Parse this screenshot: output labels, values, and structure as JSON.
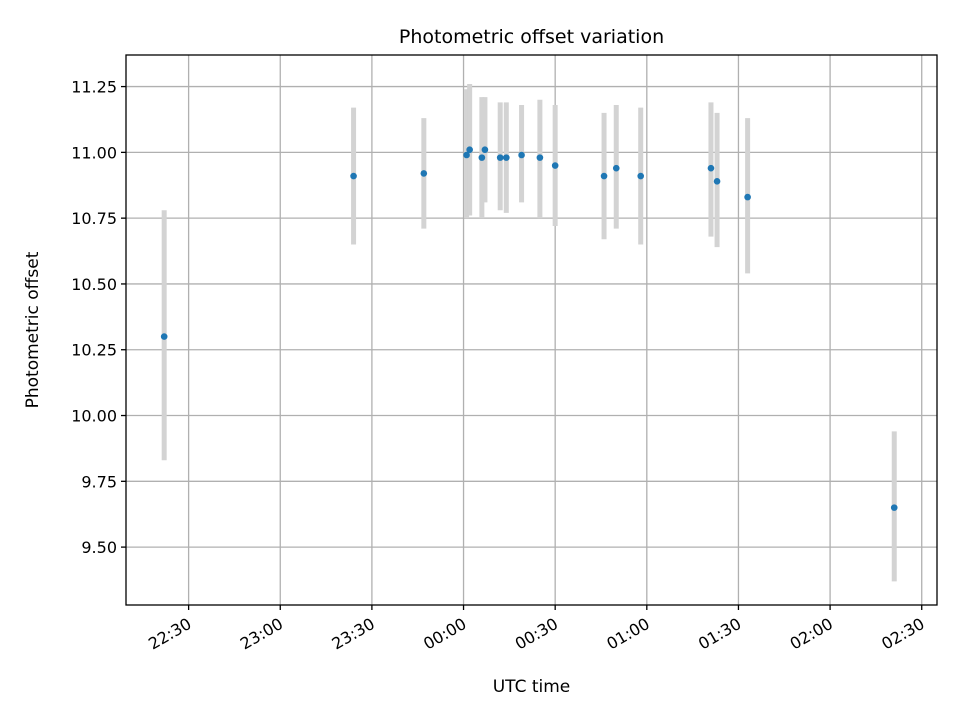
{
  "chart_data": {
    "type": "scatter",
    "title": "Photometric offset variation",
    "xlabel": "UTC time",
    "ylabel": "Photometric offset",
    "x_axis_type": "time",
    "xlim_minutes_from_2200": [
      9.5,
      275
    ],
    "ylim": [
      9.28,
      11.37
    ],
    "grid": true,
    "x_ticks": [
      "22:30",
      "23:00",
      "23:30",
      "00:00",
      "00:30",
      "01:00",
      "01:30",
      "02:00",
      "02:30"
    ],
    "y_ticks": [
      "9.50",
      "9.75",
      "10.00",
      "10.25",
      "10.50",
      "10.75",
      "11.00",
      "11.25"
    ],
    "colors": {
      "points": "#1f77b4",
      "errorbars": "#d3d3d3"
    },
    "series": [
      {
        "points": [
          {
            "time": "22:22",
            "y": 10.3,
            "ylow": 9.83,
            "yhigh": 10.78
          },
          {
            "time": "23:24",
            "y": 10.91,
            "ylow": 10.65,
            "yhigh": 11.17
          },
          {
            "time": "23:47",
            "y": 10.92,
            "ylow": 10.71,
            "yhigh": 11.13
          },
          {
            "time": "00:01",
            "y": 10.99,
            "ylow": 10.75,
            "yhigh": 11.24
          },
          {
            "time": "00:02",
            "y": 11.01,
            "ylow": 10.76,
            "yhigh": 11.26
          },
          {
            "time": "00:06",
            "y": 10.98,
            "ylow": 10.75,
            "yhigh": 11.21
          },
          {
            "time": "00:07",
            "y": 11.01,
            "ylow": 10.81,
            "yhigh": 11.21
          },
          {
            "time": "00:12",
            "y": 10.98,
            "ylow": 10.78,
            "yhigh": 11.19
          },
          {
            "time": "00:14",
            "y": 10.98,
            "ylow": 10.77,
            "yhigh": 11.19
          },
          {
            "time": "00:19",
            "y": 10.99,
            "ylow": 10.81,
            "yhigh": 11.18
          },
          {
            "time": "00:25",
            "y": 10.98,
            "ylow": 10.75,
            "yhigh": 11.2
          },
          {
            "time": "00:30",
            "y": 10.95,
            "ylow": 10.72,
            "yhigh": 11.18
          },
          {
            "time": "00:46",
            "y": 10.91,
            "ylow": 10.67,
            "yhigh": 11.15
          },
          {
            "time": "00:50",
            "y": 10.94,
            "ylow": 10.71,
            "yhigh": 11.18
          },
          {
            "time": "00:58",
            "y": 10.91,
            "ylow": 10.65,
            "yhigh": 11.17
          },
          {
            "time": "01:21",
            "y": 10.94,
            "ylow": 10.68,
            "yhigh": 11.19
          },
          {
            "time": "01:23",
            "y": 10.89,
            "ylow": 10.64,
            "yhigh": 11.15
          },
          {
            "time": "01:33",
            "y": 10.83,
            "ylow": 10.54,
            "yhigh": 11.13
          },
          {
            "time": "02:21",
            "y": 9.65,
            "ylow": 9.37,
            "yhigh": 9.94
          }
        ]
      }
    ]
  }
}
